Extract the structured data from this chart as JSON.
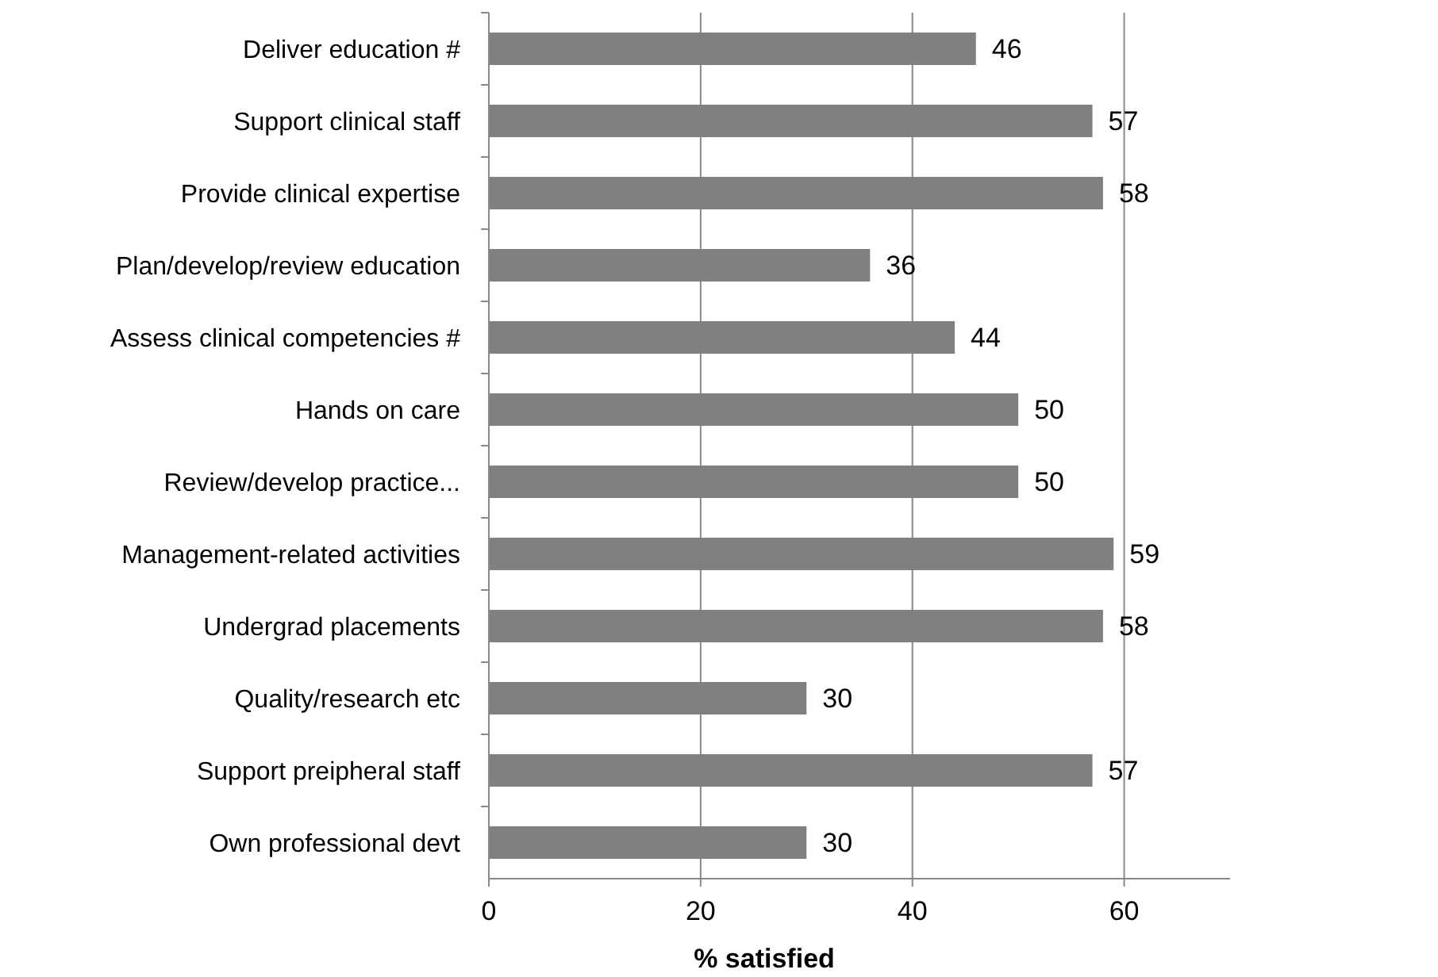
{
  "chart_data": {
    "type": "bar",
    "orientation": "horizontal",
    "xlabel": "% satisfied",
    "categories": [
      "Deliver education #",
      "Support clinical staff",
      "Provide clinical expertise",
      "Plan/develop/review education",
      "Assess clinical competencies #",
      "Hands on care",
      "Review/develop practice...",
      "Management-related activities",
      "Undergrad placements",
      "Quality/research etc",
      "Support preipheral staff",
      "Own professional devt"
    ],
    "values": [
      46,
      57,
      58,
      36,
      44,
      50,
      50,
      59,
      58,
      30,
      57,
      30
    ],
    "color": "#808080",
    "xlim": [
      0,
      70
    ],
    "xticks": [
      0,
      20,
      40,
      60
    ],
    "grid": "x",
    "data_labels": true
  }
}
